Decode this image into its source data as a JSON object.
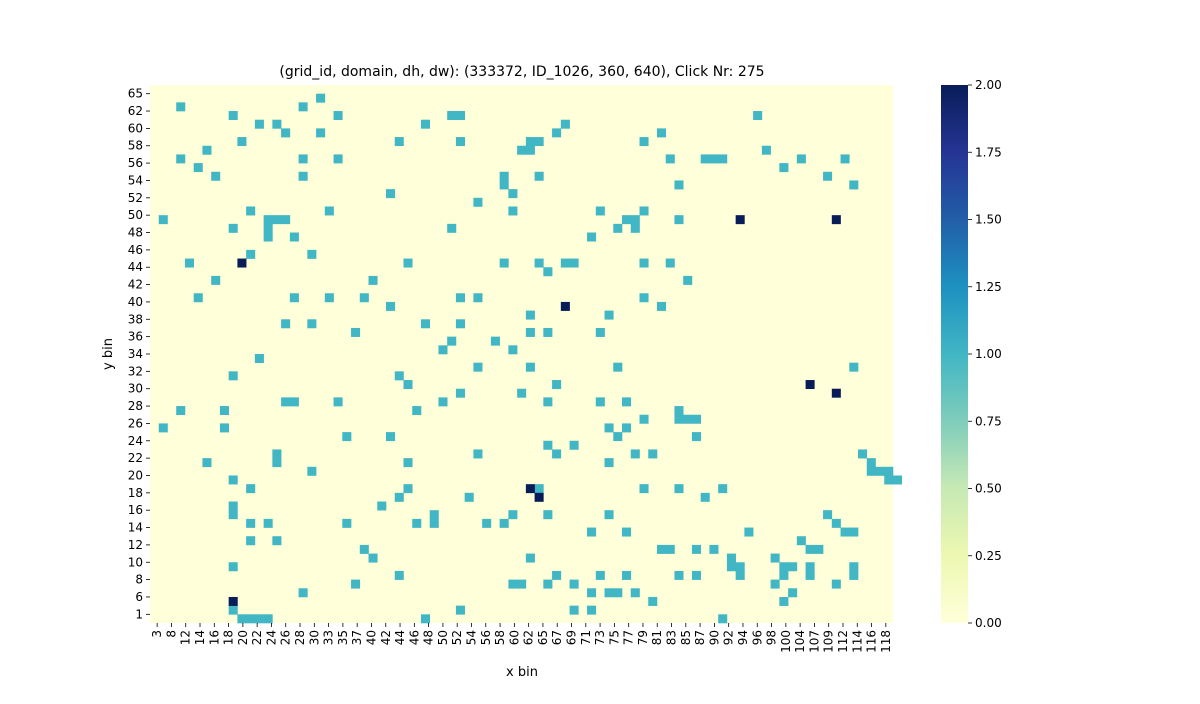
{
  "chart_data": {
    "type": "heatmap",
    "title": "(grid_id, domain, dh, dw): (333372, ID_1026, 360, 640), Click Nr: 275",
    "xlabel": "x bin",
    "ylabel": "y bin",
    "x_tick_labels": [
      "3",
      "8",
      "12",
      "14",
      "16",
      "18",
      "20",
      "22",
      "24",
      "26",
      "28",
      "30",
      "33",
      "35",
      "37",
      "40",
      "42",
      "44",
      "46",
      "48",
      "50",
      "52",
      "54",
      "56",
      "58",
      "60",
      "62",
      "65",
      "67",
      "69",
      "71",
      "73",
      "75",
      "77",
      "79",
      "81",
      "83",
      "85",
      "87",
      "90",
      "92",
      "94",
      "96",
      "98",
      "100",
      "104",
      "107",
      "109",
      "112",
      "114",
      "116",
      "118"
    ],
    "y_tick_labels": [
      "65",
      "62",
      "60",
      "58",
      "56",
      "54",
      "52",
      "50",
      "48",
      "46",
      "44",
      "42",
      "40",
      "38",
      "36",
      "34",
      "32",
      "30",
      "28",
      "26",
      "24",
      "22",
      "20",
      "18",
      "16",
      "14",
      "12",
      "10",
      "8",
      "6",
      "1"
    ],
    "colorbar": {
      "range": [
        0,
        2
      ],
      "tick_labels": [
        "0.00",
        "0.25",
        "0.50",
        "0.75",
        "1.00",
        "1.25",
        "1.50",
        "1.75",
        "2.00"
      ],
      "colormap": "YlGnBu"
    },
    "colors": {
      "empty": "#ffffd9",
      "value_1": "#41b6c4",
      "value_2": "#081d58"
    },
    "n_columns": 85,
    "n_rows": 62,
    "cells_value_1": [
      [
        19,
        1
      ],
      [
        3,
        2
      ],
      [
        17,
        2
      ],
      [
        9,
        3
      ],
      [
        21,
        3
      ],
      [
        34,
        3
      ],
      [
        35,
        3
      ],
      [
        69,
        3
      ],
      [
        12,
        4
      ],
      [
        14,
        4
      ],
      [
        31,
        4
      ],
      [
        47,
        4
      ],
      [
        15,
        5
      ],
      [
        19,
        5
      ],
      [
        46,
        5
      ],
      [
        58,
        5
      ],
      [
        56,
        6
      ],
      [
        10,
        6
      ],
      [
        28,
        6
      ],
      [
        35,
        6
      ],
      [
        43,
        6
      ],
      [
        44,
        6
      ],
      [
        6,
        7
      ],
      [
        42,
        7
      ],
      [
        70,
        7
      ],
      [
        3,
        8
      ],
      [
        17,
        8
      ],
      [
        21,
        8
      ],
      [
        59,
        8
      ],
      [
        63,
        8
      ],
      [
        64,
        8
      ],
      [
        65,
        8
      ],
      [
        74,
        8
      ],
      [
        79,
        8
      ],
      [
        5,
        9
      ],
      [
        72,
        9
      ],
      [
        44,
        10
      ],
      [
        77,
        10
      ],
      [
        7,
        10
      ],
      [
        17,
        10
      ],
      [
        40,
        10
      ],
      [
        40,
        11
      ],
      [
        60,
        11
      ],
      [
        80,
        11
      ],
      [
        27,
        12
      ],
      [
        41,
        12
      ],
      [
        11,
        14
      ],
      [
        41,
        14
      ],
      [
        20,
        14
      ],
      [
        51,
        14
      ],
      [
        56,
        14
      ],
      [
        37,
        13
      ],
      [
        1,
        15
      ],
      [
        13,
        15
      ],
      [
        14,
        15
      ],
      [
        15,
        15
      ],
      [
        54,
        15
      ],
      [
        55,
        15
      ],
      [
        60,
        15
      ],
      [
        9,
        16
      ],
      [
        13,
        16
      ],
      [
        34,
        16
      ],
      [
        50,
        17
      ],
      [
        16,
        17
      ],
      [
        18,
        19
      ],
      [
        11,
        19
      ],
      [
        29,
        20
      ],
      [
        40,
        20
      ],
      [
        44,
        20
      ],
      [
        47,
        20
      ],
      [
        48,
        20
      ],
      [
        56,
        20
      ],
      [
        59,
        20
      ],
      [
        45,
        21
      ],
      [
        61,
        22
      ],
      [
        25,
        22
      ],
      [
        16,
        24
      ],
      [
        20,
        24
      ],
      [
        24,
        24
      ],
      [
        56,
        24
      ],
      [
        27,
        25
      ],
      [
        58,
        25
      ],
      [
        43,
        26
      ],
      [
        52,
        26
      ],
      [
        15,
        27
      ],
      [
        18,
        27
      ],
      [
        31,
        27
      ],
      [
        35,
        27
      ],
      [
        43,
        28
      ],
      [
        45,
        28
      ],
      [
        23,
        28
      ],
      [
        51,
        28
      ],
      [
        34,
        29
      ],
      [
        39,
        29
      ],
      [
        33,
        30
      ],
      [
        41,
        30
      ],
      [
        12,
        31
      ],
      [
        37,
        32
      ],
      [
        43,
        32
      ],
      [
        53,
        32
      ],
      [
        28,
        33
      ],
      [
        29,
        34
      ],
      [
        21,
        36
      ],
      [
        51,
        36
      ],
      [
        8,
        39
      ],
      [
        52,
        39
      ],
      [
        22,
        40
      ],
      [
        27,
        40
      ],
      [
        14,
        42
      ],
      [
        37,
        42
      ],
      [
        48,
        41
      ],
      [
        45,
        41
      ],
      [
        46,
        42
      ],
      [
        55,
        42
      ],
      [
        57,
        42
      ],
      [
        52,
        43
      ],
      [
        11,
        46
      ],
      [
        29,
        46
      ],
      [
        60,
        46
      ],
      [
        65,
        46
      ],
      [
        56,
        46
      ],
      [
        63,
        47
      ],
      [
        52,
        49
      ],
      [
        9,
        49
      ],
      [
        45,
        49
      ],
      [
        41,
        49
      ],
      [
        11,
        50
      ],
      [
        13,
        50
      ],
      [
        22,
        50
      ],
      [
        30,
        50
      ],
      [
        32,
        50
      ],
      [
        38,
        50
      ],
      [
        40,
        50
      ],
      [
        50,
        51
      ],
      [
        54,
        51
      ],
      [
        68,
        51
      ],
      [
        64,
        53
      ],
      [
        59,
        53
      ],
      [
        58,
        53
      ],
      [
        43,
        54
      ],
      [
        66,
        54
      ],
      [
        66,
        55
      ],
      [
        71,
        54
      ],
      [
        72,
        55
      ],
      [
        73,
        55
      ],
      [
        28,
        56
      ],
      [
        46,
        56
      ],
      [
        51,
        56
      ],
      [
        54,
        56
      ],
      [
        60,
        56
      ],
      [
        62,
        56
      ],
      [
        67,
        56
      ],
      [
        41,
        57
      ],
      [
        42,
        57
      ],
      [
        45,
        57
      ],
      [
        48,
        57
      ],
      [
        52,
        58
      ],
      [
        50,
        58
      ],
      [
        53,
        58
      ],
      [
        55,
        58
      ],
      [
        73,
        58
      ],
      [
        72,
        59
      ],
      [
        9,
        60
      ],
      [
        35,
        60
      ],
      [
        31,
        61
      ],
      [
        65,
        61
      ],
      [
        43,
        7
      ],
      [
        55,
        16
      ],
      [
        53,
        16
      ],
      [
        62,
        53
      ],
      [
        67,
        55
      ],
      [
        72,
        56
      ],
      [
        71,
        57
      ],
      [
        75,
        56
      ],
      [
        78,
        57
      ],
      [
        80,
        56
      ],
      [
        80,
        55
      ],
      [
        7,
        22
      ],
      [
        35,
        24
      ],
      [
        37,
        24
      ],
      [
        44,
        46
      ],
      [
        75,
        55
      ],
      [
        80,
        32
      ],
      [
        81,
        42
      ],
      [
        82,
        43
      ],
      [
        82,
        44
      ],
      [
        83,
        44
      ],
      [
        84,
        44
      ],
      [
        84,
        45
      ],
      [
        85,
        45
      ],
      [
        77,
        49
      ],
      [
        78,
        50
      ],
      [
        79,
        51
      ],
      [
        80,
        51
      ],
      [
        75,
        53
      ],
      [
        76,
        53
      ],
      [
        74,
        52
      ],
      [
        57,
        59
      ],
      [
        48,
        60
      ],
      [
        50,
        60
      ],
      [
        53,
        40
      ],
      [
        54,
        39
      ],
      [
        56,
        38
      ],
      [
        60,
        37
      ],
      [
        60,
        38
      ],
      [
        61,
        38
      ],
      [
        62,
        38
      ],
      [
        62,
        40
      ],
      [
        54,
        36
      ],
      [
        45,
        36
      ],
      [
        46,
        34
      ],
      [
        33,
        36
      ],
      [
        30,
        37
      ],
      [
        42,
        35
      ],
      [
        35,
        35
      ],
      [
        3,
        37
      ],
      [
        1,
        39
      ],
      [
        6,
        43
      ],
      [
        9,
        45
      ],
      [
        9,
        48
      ],
      [
        11,
        52
      ],
      [
        14,
        52
      ],
      [
        17,
        58
      ],
      [
        23,
        57
      ],
      [
        25,
        54
      ],
      [
        24,
        53
      ],
      [
        4,
        20
      ],
      [
        5,
        24
      ],
      [
        13,
        17
      ],
      [
        9,
        55
      ],
      [
        14,
        43
      ],
      [
        18,
        44
      ],
      [
        26,
        48
      ],
      [
        32,
        49
      ],
      [
        10,
        61
      ],
      [
        11,
        61
      ],
      [
        12,
        61
      ],
      [
        13,
        61
      ],
      [
        8,
        37
      ],
      [
        29,
        43
      ],
      [
        9,
        33
      ],
      [
        28,
        47
      ],
      [
        36,
        47
      ],
      [
        15,
        36
      ],
      [
        16,
        36
      ]
    ],
    "cells_value_2": [
      [
        9,
        59
      ],
      [
        44,
        47
      ],
      [
        43,
        46
      ],
      [
        75,
        34
      ],
      [
        78,
        35
      ],
      [
        47,
        25
      ],
      [
        10,
        20
      ],
      [
        67,
        15
      ],
      [
        78,
        15
      ]
    ]
  }
}
